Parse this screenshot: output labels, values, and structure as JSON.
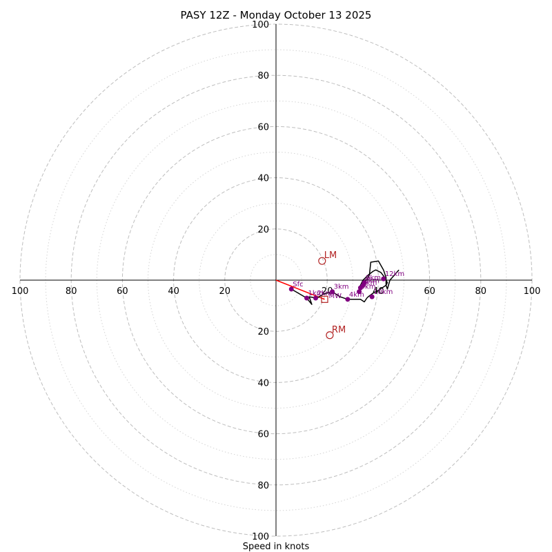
{
  "chart_data": {
    "type": "hodograph",
    "title": "PASY 12Z - Monday October 13 2025",
    "xlabel": "Speed in knots",
    "rmax": 100,
    "ring_major": [
      20,
      40,
      60,
      80,
      100
    ],
    "ring_minor": [
      10,
      30,
      50,
      70,
      90
    ],
    "x_ticks": [
      {
        "value": -100,
        "label": "100"
      },
      {
        "value": -80,
        "label": "80"
      },
      {
        "value": -60,
        "label": "60"
      },
      {
        "value": -40,
        "label": "40"
      },
      {
        "value": -20,
        "label": "20"
      },
      {
        "value": 20,
        "label": "20"
      },
      {
        "value": 40,
        "label": "40"
      },
      {
        "value": 60,
        "label": "60"
      },
      {
        "value": 80,
        "label": "80"
      },
      {
        "value": 100,
        "label": "100"
      }
    ],
    "y_ticks": [
      {
        "value": 100,
        "label": "100"
      },
      {
        "value": 80,
        "label": "80"
      },
      {
        "value": 60,
        "label": "60"
      },
      {
        "value": 40,
        "label": "40"
      },
      {
        "value": 20,
        "label": "20"
      },
      {
        "value": -20,
        "label": "20"
      },
      {
        "value": -40,
        "label": "40"
      },
      {
        "value": -60,
        "label": "60"
      },
      {
        "value": -80,
        "label": "80"
      },
      {
        "value": -100,
        "label": "100"
      }
    ],
    "hodograph_trace": [
      [
        6,
        -3.5
      ],
      [
        12,
        -7
      ],
      [
        14,
        -9.5
      ],
      [
        13,
        -6.5
      ],
      [
        16,
        -7
      ],
      [
        18.5,
        -5.5
      ],
      [
        22,
        -4.5
      ],
      [
        25,
        -6.5
      ],
      [
        28,
        -7.5
      ],
      [
        33,
        -7.5
      ],
      [
        34.5,
        -8.5
      ],
      [
        35.5,
        -7
      ],
      [
        36,
        -6.5
      ],
      [
        38,
        -5
      ],
      [
        40,
        -4
      ],
      [
        41.5,
        -3
      ],
      [
        43,
        -2
      ],
      [
        43.5,
        -1
      ],
      [
        42.5,
        1
      ],
      [
        41,
        3
      ],
      [
        39,
        4
      ],
      [
        38,
        3.5
      ],
      [
        36,
        2
      ],
      [
        34,
        0
      ],
      [
        33,
        -2
      ],
      [
        32.5,
        -3.5
      ],
      [
        34,
        -2
      ],
      [
        36.5,
        2
      ],
      [
        37,
        7
      ],
      [
        40,
        7.5
      ],
      [
        42,
        4
      ],
      [
        43,
        1
      ],
      [
        43,
        -2
      ],
      [
        43.5,
        -3.5
      ],
      [
        44.5,
        0
      ],
      [
        48,
        4
      ]
    ],
    "levels": [
      {
        "label": "Sfc",
        "u": 6,
        "v": -3.5
      },
      {
        "label": "1km",
        "u": 12,
        "v": -7
      },
      {
        "label": "2km",
        "u": 15.5,
        "v": -7
      },
      {
        "label": "3km",
        "u": 22,
        "v": -4.5
      },
      {
        "label": "4km",
        "u": 28,
        "v": -7.5
      },
      {
        "label": "5km",
        "u": 32.5,
        "v": -4.5
      },
      {
        "label": "6km",
        "u": 33,
        "v": -3
      },
      {
        "label": "8km",
        "u": 34,
        "v": -2
      },
      {
        "label": "9km",
        "u": 34.5,
        "v": -1
      },
      {
        "label": "10km",
        "u": 37.5,
        "v": -6.5
      },
      {
        "label": "12km",
        "u": 42,
        "v": 0.5
      }
    ],
    "storm_motion_vector": {
      "from": [
        0,
        0
      ],
      "to": [
        19,
        -7.5
      ]
    },
    "mean_wind": {
      "label": "MW",
      "u": 19,
      "v": -7.5
    },
    "left_mover": {
      "label": "LM",
      "u": 18,
      "v": 7.5
    },
    "right_mover": {
      "label": "RM",
      "u": 21,
      "v": -21.5
    },
    "colors": {
      "trace": "#000000",
      "points": "#800080",
      "motion": "#ff0000",
      "storm": "#b22222",
      "grid": "#bdbdbd",
      "axis": "#000000"
    }
  }
}
